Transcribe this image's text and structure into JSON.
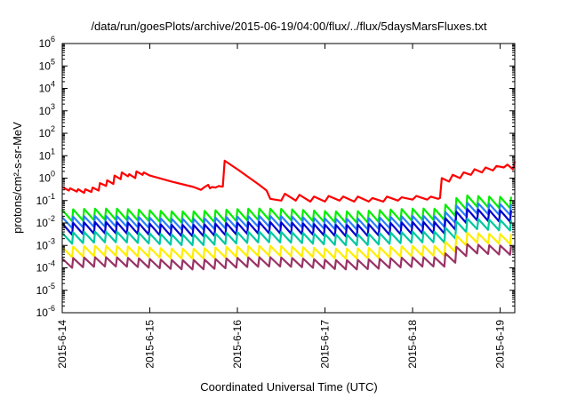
{
  "chart_data": {
    "type": "line",
    "title": "/data/run/goesPlots/archive/2015-06-19/04:00/flux/../flux/5daysMarsFluxes.txt",
    "xlabel": "Coordinated Universal Time (UTC)",
    "ylabel": "protons/cm²-s-sr-MeV",
    "y_scale": "log",
    "x_unit": "days",
    "xlim": [
      "2015-06-14T00:00",
      "2015-06-19T04:00"
    ],
    "ylim": [
      1e-06,
      1000000.0
    ],
    "x_ticks": [
      {
        "x": "2015-06-14T00:00",
        "label": "2015-6-14"
      },
      {
        "x": "2015-06-15T00:00",
        "label": "2015-6-15"
      },
      {
        "x": "2015-06-16T00:00",
        "label": "2015-6-16"
      },
      {
        "x": "2015-06-17T00:00",
        "label": "2015-6-17"
      },
      {
        "x": "2015-06-18T00:00",
        "label": "2015-6-18"
      },
      {
        "x": "2015-06-19T00:00",
        "label": "2015-6-19"
      }
    ],
    "y_ticks": [
      {
        "y": 1e-06,
        "base": "10",
        "exp": "-6"
      },
      {
        "y": 1e-05,
        "base": "10",
        "exp": "-5"
      },
      {
        "y": 0.0001,
        "base": "10",
        "exp": "-4"
      },
      {
        "y": 0.001,
        "base": "10",
        "exp": "-3"
      },
      {
        "y": 0.01,
        "base": "10",
        "exp": "-2"
      },
      {
        "y": 0.1,
        "base": "10",
        "exp": "-1"
      },
      {
        "y": 1,
        "base": "10",
        "exp": "0"
      },
      {
        "y": 10,
        "base": "10",
        "exp": "1"
      },
      {
        "y": 100,
        "base": "10",
        "exp": "2"
      },
      {
        "y": 1000,
        "base": "10",
        "exp": "3"
      },
      {
        "y": 10000,
        "base": "10",
        "exp": "4"
      },
      {
        "y": 100000,
        "base": "10",
        "exp": "5"
      },
      {
        "y": 1000000,
        "base": "10",
        "exp": "6"
      }
    ],
    "grid": false,
    "legend": "none",
    "series": [
      {
        "color": "#ff0000",
        "points": [
          [
            "2015-06-14T00:00",
            0.4
          ],
          [
            "2015-06-14T01:50",
            0.28
          ],
          [
            "2015-06-14T02:10",
            0.35
          ],
          [
            "2015-06-14T04:00",
            0.25
          ],
          [
            "2015-06-14T04:20",
            0.32
          ],
          [
            "2015-06-14T06:00",
            0.22
          ],
          [
            "2015-06-14T06:20",
            0.32
          ],
          [
            "2015-06-14T08:00",
            0.24
          ],
          [
            "2015-06-14T08:20",
            0.38
          ],
          [
            "2015-06-14T10:00",
            0.28
          ],
          [
            "2015-06-14T10:20",
            0.6
          ],
          [
            "2015-06-14T12:00",
            0.45
          ],
          [
            "2015-06-14T12:20",
            0.8
          ],
          [
            "2015-06-14T14:00",
            0.55
          ],
          [
            "2015-06-14T14:20",
            1.3
          ],
          [
            "2015-06-14T16:00",
            0.9
          ],
          [
            "2015-06-14T16:20",
            1.8
          ],
          [
            "2015-06-14T18:00",
            1.2
          ],
          [
            "2015-06-14T18:20",
            1.5
          ],
          [
            "2015-06-14T20:00",
            1.0
          ],
          [
            "2015-06-14T20:20",
            2.0
          ],
          [
            "2015-06-14T22:00",
            1.4
          ],
          [
            "2015-06-14T22:20",
            1.8
          ],
          [
            "2015-06-15T00:00",
            1.3
          ],
          [
            "2015-06-15T06:00",
            0.7
          ],
          [
            "2015-06-15T12:00",
            0.4
          ],
          [
            "2015-06-15T14:00",
            0.3
          ],
          [
            "2015-06-15T15:00",
            0.4
          ],
          [
            "2015-06-15T16:00",
            0.5
          ],
          [
            "2015-06-15T16:30",
            0.35
          ],
          [
            "2015-06-15T17:00",
            0.4
          ],
          [
            "2015-06-15T18:00",
            0.38
          ],
          [
            "2015-06-15T19:00",
            0.45
          ],
          [
            "2015-06-15T19:30",
            0.42
          ],
          [
            "2015-06-15T20:00",
            0.42
          ],
          [
            "2015-06-15T20:30",
            6.0
          ],
          [
            "2015-06-16T00:00",
            2.5
          ],
          [
            "2015-06-16T06:00",
            0.5
          ],
          [
            "2015-06-16T08:00",
            0.28
          ],
          [
            "2015-06-16T09:00",
            0.12
          ],
          [
            "2015-06-16T12:00",
            0.1
          ],
          [
            "2015-06-16T13:00",
            0.2
          ],
          [
            "2015-06-16T16:00",
            0.1
          ],
          [
            "2015-06-16T17:00",
            0.18
          ],
          [
            "2015-06-16T20:00",
            0.09
          ],
          [
            "2015-06-16T21:00",
            0.15
          ],
          [
            "2015-06-17T00:00",
            0.09
          ],
          [
            "2015-06-17T01:00",
            0.16
          ],
          [
            "2015-06-17T04:00",
            0.1
          ],
          [
            "2015-06-17T05:00",
            0.15
          ],
          [
            "2015-06-17T08:00",
            0.09
          ],
          [
            "2015-06-17T09:00",
            0.15
          ],
          [
            "2015-06-17T12:00",
            0.09
          ],
          [
            "2015-06-17T13:00",
            0.13
          ],
          [
            "2015-06-17T16:00",
            0.09
          ],
          [
            "2015-06-17T17:00",
            0.15
          ],
          [
            "2015-06-17T20:00",
            0.1
          ],
          [
            "2015-06-17T21:00",
            0.14
          ],
          [
            "2015-06-18T00:00",
            0.11
          ],
          [
            "2015-06-18T01:00",
            0.16
          ],
          [
            "2015-06-18T04:00",
            0.11
          ],
          [
            "2015-06-18T05:00",
            0.15
          ],
          [
            "2015-06-18T07:00",
            0.12
          ],
          [
            "2015-06-18T07:30",
            0.13
          ],
          [
            "2015-06-18T08:00",
            1.0
          ],
          [
            "2015-06-18T10:00",
            0.7
          ],
          [
            "2015-06-18T11:00",
            1.4
          ],
          [
            "2015-06-18T13:00",
            1.0
          ],
          [
            "2015-06-18T14:00",
            1.8
          ],
          [
            "2015-06-18T16:00",
            1.4
          ],
          [
            "2015-06-18T17:00",
            2.5
          ],
          [
            "2015-06-18T19:00",
            1.8
          ],
          [
            "2015-06-18T20:00",
            3.0
          ],
          [
            "2015-06-18T22:00",
            2.2
          ],
          [
            "2015-06-18T23:00",
            3.5
          ],
          [
            "2015-06-19T01:00",
            3.0
          ],
          [
            "2015-06-19T02:00",
            4.0
          ],
          [
            "2015-06-19T03:30",
            2.5
          ],
          [
            "2015-06-19T04:00",
            5.5
          ]
        ]
      },
      {
        "color": "#00ee00",
        "base": 0.012,
        "amp": 3.2,
        "period_h": 3.0
      },
      {
        "color": "#2a7fff",
        "base": 0.006,
        "amp": 3.0,
        "period_h": 3.0
      },
      {
        "color": "#0000cc",
        "base": 0.003,
        "amp": 3.2,
        "period_h": 3.0
      },
      {
        "color": "#00c8a0",
        "base": 0.0012,
        "amp": 3.0,
        "period_h": 3.0
      },
      {
        "color": "#ffee00",
        "base": 0.0003,
        "amp": 2.8,
        "period_h": 3.0
      },
      {
        "color": "#993366",
        "base": 0.0001,
        "amp": 2.6,
        "period_h": 3.0
      }
    ]
  }
}
